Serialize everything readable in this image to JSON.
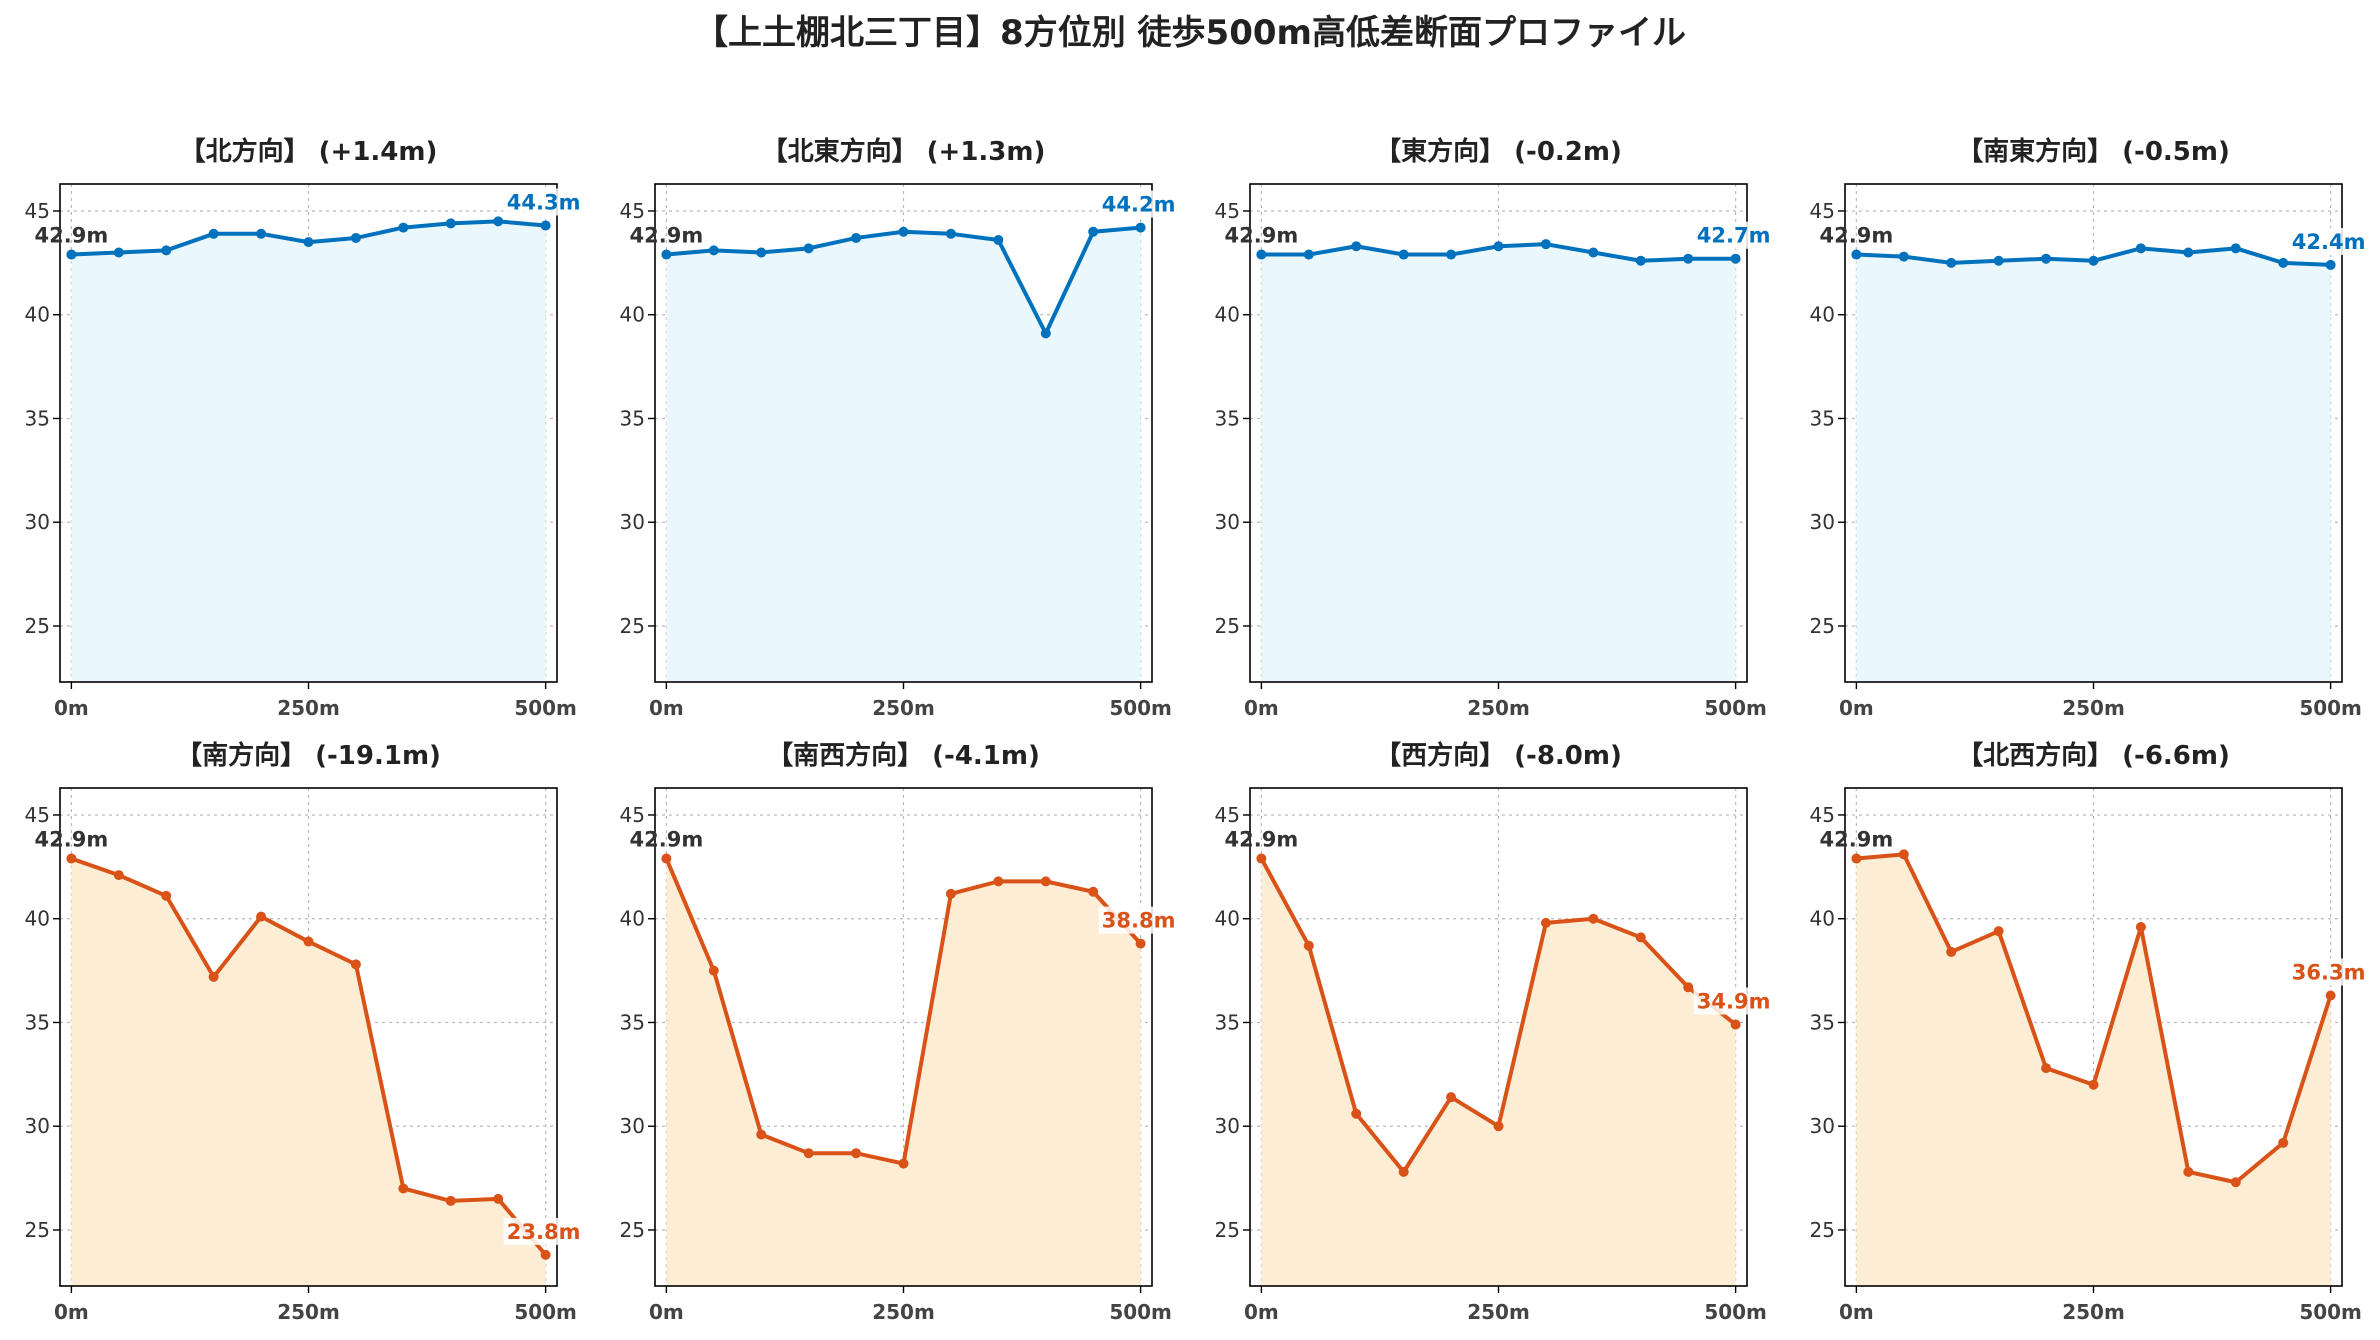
{
  "title": "【上土棚北三丁目】8方位別 徒歩500m高低差断面プロファイル",
  "colors": {
    "up_line": "#0072BD",
    "up_fill": "#EAF7FC",
    "down_line": "#D95319",
    "down_fill": "#FDEDD4"
  },
  "chart_data": [
    {
      "type": "area",
      "title": "【北方向】 (+1.4m)",
      "trend": "up",
      "x": [
        0,
        50,
        100,
        150,
        200,
        250,
        300,
        350,
        400,
        450,
        500
      ],
      "y": [
        42.9,
        43.0,
        43.1,
        43.9,
        43.9,
        43.5,
        43.7,
        44.2,
        44.4,
        44.5,
        44.3
      ],
      "start_label": "42.9m",
      "end_label": "44.3m",
      "xticks": [
        "0m",
        "250m",
        "500m"
      ],
      "yticks": [
        "25",
        "30",
        "35",
        "40",
        "45"
      ],
      "ylim": [
        22.3,
        46.3
      ],
      "xlim": [
        -12,
        512
      ],
      "grid": true
    },
    {
      "type": "area",
      "title": "【北東方向】 (+1.3m)",
      "trend": "up",
      "x": [
        0,
        50,
        100,
        150,
        200,
        250,
        300,
        350,
        400,
        450,
        500
      ],
      "y": [
        42.9,
        43.1,
        43.0,
        43.2,
        43.7,
        44.0,
        43.9,
        43.6,
        39.1,
        44.0,
        44.2
      ],
      "start_label": "42.9m",
      "end_label": "44.2m",
      "xticks": [
        "0m",
        "250m",
        "500m"
      ],
      "yticks": [
        "25",
        "30",
        "35",
        "40",
        "45"
      ],
      "ylim": [
        22.3,
        46.3
      ],
      "xlim": [
        -12,
        512
      ],
      "grid": true
    },
    {
      "type": "area",
      "title": "【東方向】 (-0.2m)",
      "trend": "up",
      "x": [
        0,
        50,
        100,
        150,
        200,
        250,
        300,
        350,
        400,
        450,
        500
      ],
      "y": [
        42.9,
        42.9,
        43.3,
        42.9,
        42.9,
        43.3,
        43.4,
        43.0,
        42.6,
        42.7,
        42.7
      ],
      "start_label": "42.9m",
      "end_label": "42.7m",
      "xticks": [
        "0m",
        "250m",
        "500m"
      ],
      "yticks": [
        "25",
        "30",
        "35",
        "40",
        "45"
      ],
      "ylim": [
        22.3,
        46.3
      ],
      "xlim": [
        -12,
        512
      ],
      "grid": true
    },
    {
      "type": "area",
      "title": "【南東方向】 (-0.5m)",
      "trend": "up",
      "x": [
        0,
        50,
        100,
        150,
        200,
        250,
        300,
        350,
        400,
        450,
        500
      ],
      "y": [
        42.9,
        42.8,
        42.5,
        42.6,
        42.7,
        42.6,
        43.2,
        43.0,
        43.2,
        42.5,
        42.4
      ],
      "start_label": "42.9m",
      "end_label": "42.4m",
      "xticks": [
        "0m",
        "250m",
        "500m"
      ],
      "yticks": [
        "25",
        "30",
        "35",
        "40",
        "45"
      ],
      "ylim": [
        22.3,
        46.3
      ],
      "xlim": [
        -12,
        512
      ],
      "grid": true
    },
    {
      "type": "area",
      "title": "【南方向】 (-19.1m)",
      "trend": "down",
      "x": [
        0,
        50,
        100,
        150,
        200,
        250,
        300,
        350,
        400,
        450,
        500
      ],
      "y": [
        42.9,
        42.1,
        41.1,
        37.2,
        40.1,
        38.9,
        37.8,
        27.0,
        26.4,
        26.5,
        23.8
      ],
      "start_label": "42.9m",
      "end_label": "23.8m",
      "xticks": [
        "0m",
        "250m",
        "500m"
      ],
      "yticks": [
        "25",
        "30",
        "35",
        "40",
        "45"
      ],
      "ylim": [
        22.3,
        46.3
      ],
      "xlim": [
        -12,
        512
      ],
      "grid": true
    },
    {
      "type": "area",
      "title": "【南西方向】 (-4.1m)",
      "trend": "down",
      "x": [
        0,
        50,
        100,
        150,
        200,
        250,
        300,
        350,
        400,
        450,
        500
      ],
      "y": [
        42.9,
        37.5,
        29.6,
        28.7,
        28.7,
        28.2,
        41.2,
        41.8,
        41.8,
        41.3,
        38.8
      ],
      "start_label": "42.9m",
      "end_label": "38.8m",
      "xticks": [
        "0m",
        "250m",
        "500m"
      ],
      "yticks": [
        "25",
        "30",
        "35",
        "40",
        "45"
      ],
      "ylim": [
        22.3,
        46.3
      ],
      "xlim": [
        -12,
        512
      ],
      "grid": true
    },
    {
      "type": "area",
      "title": "【西方向】 (-8.0m)",
      "trend": "down",
      "x": [
        0,
        50,
        100,
        150,
        200,
        250,
        300,
        350,
        400,
        450,
        500
      ],
      "y": [
        42.9,
        38.7,
        30.6,
        27.8,
        31.4,
        30.0,
        39.8,
        40.0,
        39.1,
        36.7,
        34.9
      ],
      "start_label": "42.9m",
      "end_label": "34.9m",
      "xticks": [
        "0m",
        "250m",
        "500m"
      ],
      "yticks": [
        "25",
        "30",
        "35",
        "40",
        "45"
      ],
      "ylim": [
        22.3,
        46.3
      ],
      "xlim": [
        -12,
        512
      ],
      "grid": true
    },
    {
      "type": "area",
      "title": "【北西方向】 (-6.6m)",
      "trend": "down",
      "x": [
        0,
        50,
        100,
        150,
        200,
        250,
        300,
        350,
        400,
        450,
        500
      ],
      "y": [
        42.9,
        43.1,
        38.4,
        39.4,
        32.8,
        32.0,
        39.6,
        27.8,
        27.3,
        29.2,
        36.3
      ],
      "start_label": "42.9m",
      "end_label": "36.3m",
      "xticks": [
        "0m",
        "250m",
        "500m"
      ],
      "yticks": [
        "25",
        "30",
        "35",
        "40",
        "45"
      ],
      "ylim": [
        22.3,
        46.3
      ],
      "xlim": [
        -12,
        512
      ],
      "grid": true
    }
  ]
}
